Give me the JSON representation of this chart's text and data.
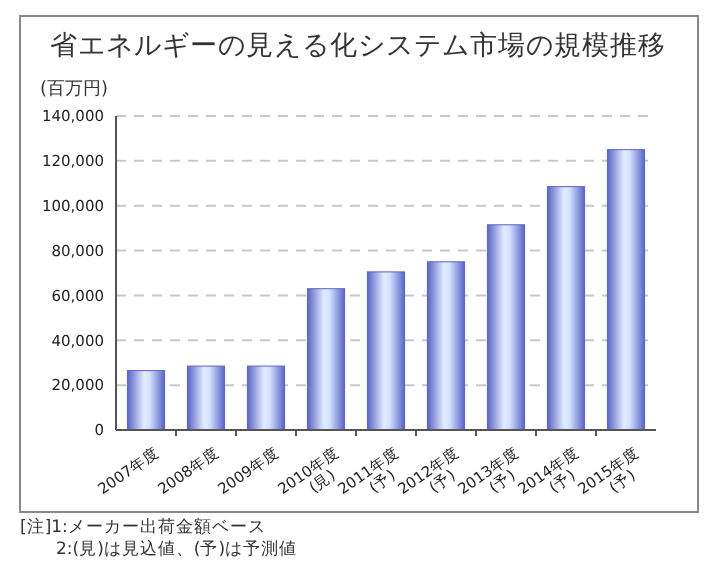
{
  "chart_data": {
    "type": "bar",
    "title": "省エネルギーの見える化システム市場の規模推移",
    "ylabel": "(百万円)",
    "categories": [
      "2007年度",
      "2008年度",
      "2009年度",
      "2010年度\n(見)",
      "2011年度\n(予)",
      "2012年度\n(予)",
      "2013年度\n(予)",
      "2014年度\n(予)",
      "2015年度\n(予)"
    ],
    "values": [
      26500,
      28500,
      28500,
      63000,
      70500,
      75000,
      91500,
      108500,
      125000
    ],
    "color": "#5a64c4",
    "ylim": [
      0,
      140000
    ],
    "yticks": [
      0,
      {
        "value": 20000,
        "label": "20,000"
      },
      {
        "value": 40000,
        "label": "40,000"
      },
      {
        "value": 60000,
        "label": "60,000"
      },
      {
        "value": 80000,
        "label": "80,000"
      },
      {
        "value": 100000,
        "label": "100,000"
      },
      {
        "value": 120000,
        "label": "120,000"
      },
      {
        "value": 140000,
        "label": "140,000"
      }
    ],
    "grid": "y",
    "annotations": [
      "[注]1:メーカー出荷金額ベース",
      "2:(見)は見込値、(予)は予測値"
    ]
  }
}
